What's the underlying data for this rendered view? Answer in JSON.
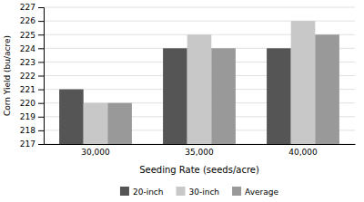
{
  "chart_data": {
    "type": "bar",
    "xlabel": "Seeding Rate (seeds/acre)",
    "ylabel": "Corn Yield (bu/acre)",
    "categories": [
      "30,000",
      "35,000",
      "40,000"
    ],
    "series": [
      {
        "name": "20-inch",
        "color": "#555555",
        "values": [
          221,
          224,
          224
        ]
      },
      {
        "name": "30-inch",
        "color": "#c8c8c8",
        "values": [
          220,
          225,
          226
        ]
      },
      {
        "name": "Average",
        "color": "#999999",
        "values": [
          220,
          224,
          225
        ]
      }
    ],
    "ylim": [
      217,
      227
    ],
    "yticks": [
      217,
      218,
      219,
      220,
      221,
      222,
      223,
      224,
      225,
      226,
      227
    ],
    "grid": true,
    "legend": "bottom"
  }
}
